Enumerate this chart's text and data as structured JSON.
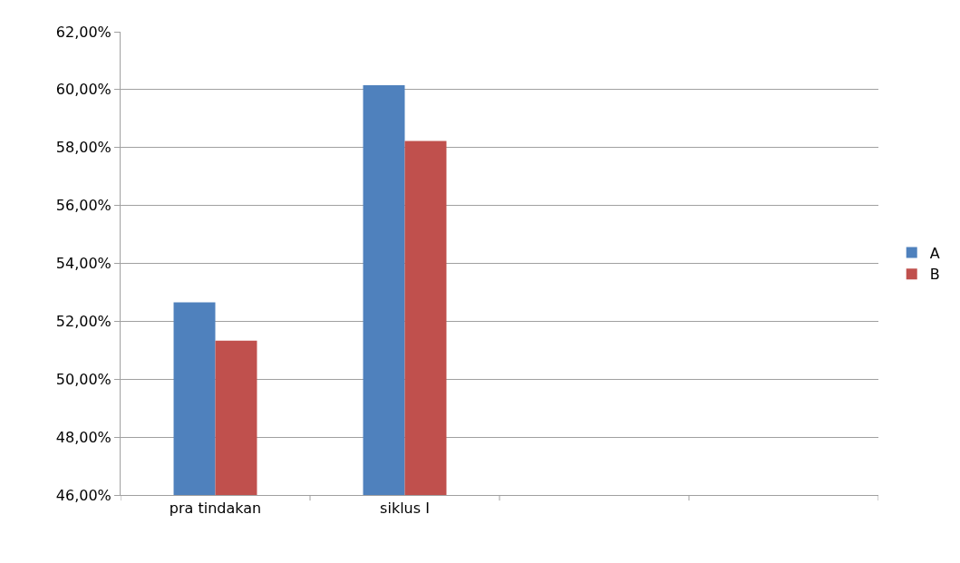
{
  "chart_data": {
    "type": "bar",
    "categories": [
      "pra tindakan",
      "siklus I",
      null,
      null
    ],
    "series": [
      {
        "name": "A",
        "color": "#4f81bd",
        "values": [
          52.65,
          60.15,
          null,
          null
        ]
      },
      {
        "name": "B",
        "color": "#c0504d",
        "values": [
          51.33,
          58.23,
          null,
          null
        ]
      }
    ],
    "ylim": [
      46,
      62
    ],
    "yticks": [
      {
        "value": 46,
        "label": "46,00%"
      },
      {
        "value": 48,
        "label": "48,00%"
      },
      {
        "value": 50,
        "label": "50,00%"
      },
      {
        "value": 52,
        "label": "52,00%"
      },
      {
        "value": 54,
        "label": "54,00%"
      },
      {
        "value": 56,
        "label": "56,00%"
      },
      {
        "value": 58,
        "label": "58,00%"
      },
      {
        "value": 60,
        "label": "60,00%"
      },
      {
        "value": 62,
        "label": "62,00%"
      }
    ],
    "grid": "y",
    "legend": "right"
  }
}
